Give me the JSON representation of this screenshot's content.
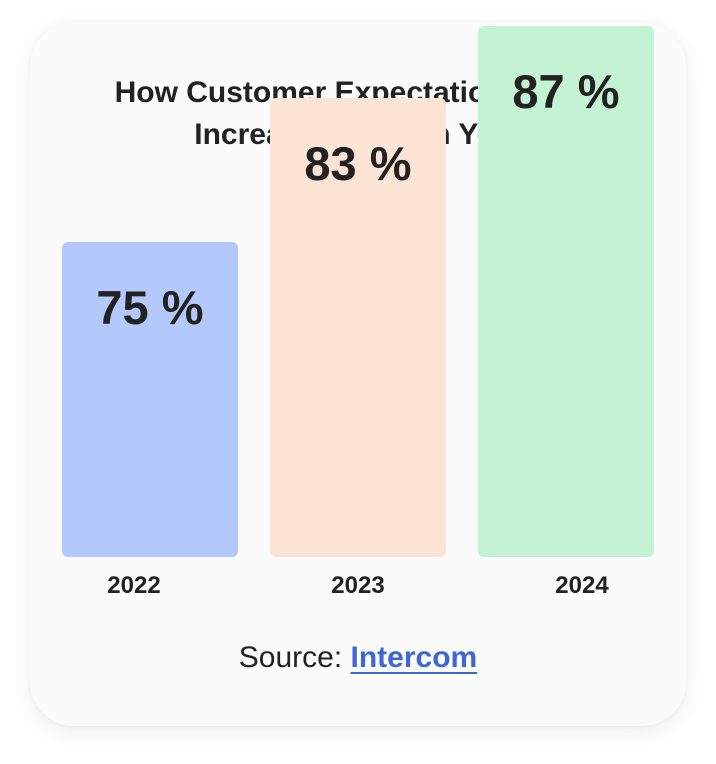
{
  "chart_data": {
    "type": "bar",
    "title": "How Customer Expectations Have Increased Year on Year",
    "title_lines": [
      "How Customer Expectations Have",
      "Increased Year on Year"
    ],
    "categories": [
      "2022",
      "2023",
      "2024"
    ],
    "values": [
      75,
      83,
      87
    ],
    "value_labels": [
      "75 %",
      "83 %",
      "87 %"
    ],
    "bar_colors": [
      "#b4c9fb",
      "#fce4d4",
      "#c3f3d2"
    ],
    "xlabel": "",
    "ylabel": "",
    "grid": false,
    "legend": "none"
  },
  "source": {
    "prefix": "Source: ",
    "link_text": "Intercom"
  }
}
